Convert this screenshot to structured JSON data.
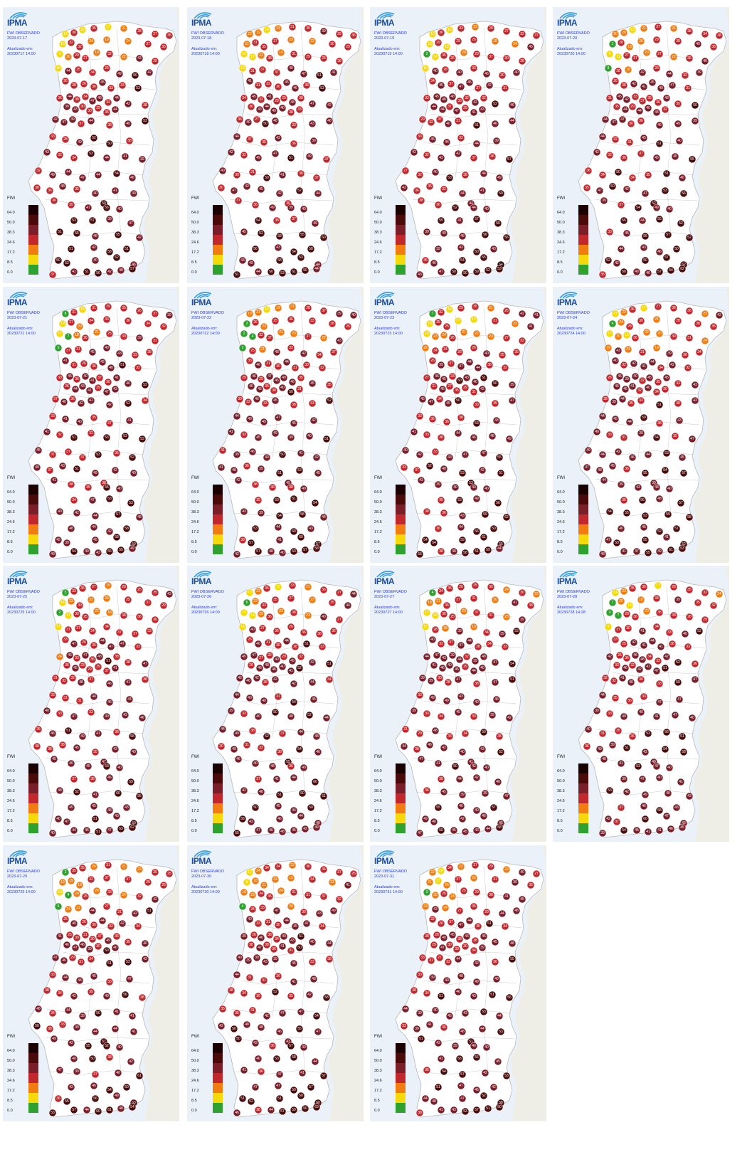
{
  "brand": "IPMA",
  "product": "FWI OBSERVADO",
  "updated_label": "Atualizado em:",
  "legend": {
    "title": "FWI",
    "ticks": [
      "64.0",
      "50.0",
      "38.3",
      "24.6",
      "17.2",
      "8.5",
      "0.0"
    ],
    "colors": [
      "#1a0000",
      "#4a0a0a",
      "#7a1f2a",
      "#c0282d",
      "#f07c12",
      "#f5d90a",
      "#2fa12f"
    ]
  },
  "colors": {
    "land": "#ffffff",
    "sea": "#eaf1f8",
    "spain": "#eeeee6",
    "border": "#c9c9c9",
    "text_blue": "#2a3df0",
    "logo_blue": "#1d4f9c"
  },
  "panels": [
    {
      "date": "2023-07-17",
      "updated": "20230717 14:00"
    },
    {
      "date": "2023-07-18",
      "updated": "20230718 14:00"
    },
    {
      "date": "2023-07-19",
      "updated": "20230719 14:00"
    },
    {
      "date": "2023-07-20",
      "updated": "20230720 14:00"
    },
    {
      "date": "2023-07-21",
      "updated": "20230721 14:00"
    },
    {
      "date": "2023-07-22",
      "updated": "20230722 14:00"
    },
    {
      "date": "2023-07-23",
      "updated": "20230723 14:00"
    },
    {
      "date": "2023-07-24",
      "updated": "20230724 14:00"
    },
    {
      "date": "2023-07-25",
      "updated": "20230725 14:00"
    },
    {
      "date": "2023-07-26",
      "updated": "20230726 14:00"
    },
    {
      "date": "2023-07-27",
      "updated": "20230727 14:00"
    },
    {
      "date": "2023-07-28",
      "updated": "20230728 14:28"
    },
    {
      "date": "2023-07-29",
      "updated": "20230729 14:00"
    },
    {
      "date": "2023-07-30",
      "updated": "20230730 14:00"
    },
    {
      "date": "2023-07-31",
      "updated": "20230731 14:00"
    }
  ]
}
